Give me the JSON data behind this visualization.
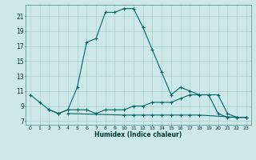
{
  "xlabel": "Humidex (Indice chaleur)",
  "x_ticks": [
    0,
    1,
    2,
    3,
    4,
    5,
    6,
    7,
    8,
    9,
    10,
    11,
    12,
    13,
    14,
    15,
    16,
    17,
    18,
    19,
    20,
    21,
    22,
    23
  ],
  "y_ticks": [
    7,
    9,
    11,
    13,
    15,
    17,
    19,
    21
  ],
  "xlim": [
    -0.5,
    23.5
  ],
  "ylim": [
    6.5,
    22.5
  ],
  "bg_color": "#cce8e8",
  "line_color": "#006666",
  "grid_color": "#aacfcf",
  "lines": [
    {
      "x": [
        0,
        1,
        2,
        3,
        4,
        5,
        6,
        7,
        8,
        9,
        10,
        11,
        12,
        13,
        14,
        15,
        16,
        17,
        18,
        19,
        20,
        21,
        22,
        23
      ],
      "y": [
        10.5,
        9.5,
        8.5,
        8.0,
        8.5,
        11.5,
        17.5,
        18.0,
        21.5,
        21.5,
        22.0,
        22.0,
        19.5,
        16.5,
        13.5,
        10.5,
        11.5,
        11.0,
        10.5,
        10.5,
        8.0,
        7.5,
        7.5,
        7.5
      ]
    },
    {
      "x": [
        2,
        3,
        4,
        5,
        6,
        7,
        8,
        9,
        10,
        11,
        12,
        13,
        14,
        15,
        16,
        17,
        18,
        19,
        20,
        21,
        22,
        23
      ],
      "y": [
        8.5,
        8.0,
        8.5,
        8.5,
        8.5,
        8.0,
        8.5,
        8.5,
        8.5,
        9.0,
        9.0,
        9.5,
        9.5,
        9.5,
        10.0,
        10.5,
        10.5,
        10.5,
        10.5,
        8.0,
        7.5,
        7.5
      ]
    },
    {
      "x": [
        4,
        10,
        11,
        12,
        13,
        14,
        15,
        16,
        17,
        18,
        22,
        23
      ],
      "y": [
        8.0,
        7.8,
        7.8,
        7.8,
        7.8,
        7.8,
        7.8,
        7.8,
        7.8,
        7.8,
        7.5,
        7.5
      ]
    }
  ]
}
